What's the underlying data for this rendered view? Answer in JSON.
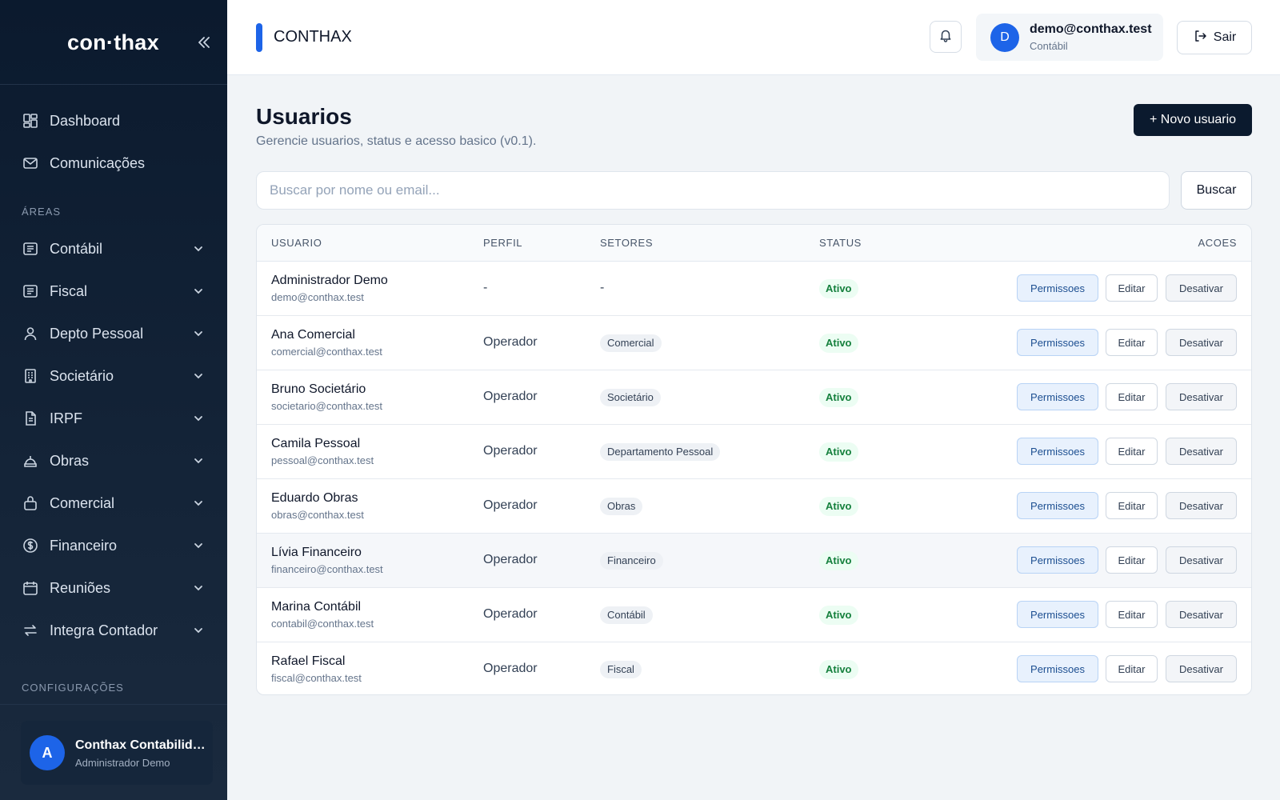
{
  "sidebar": {
    "logo": "con·thax",
    "items": [
      {
        "label": "Dashboard",
        "icon": "dashboard-icon"
      },
      {
        "label": "Comunicações",
        "icon": "mail-icon"
      }
    ],
    "areas_label": "ÁREAS",
    "areas": [
      {
        "label": "Contábil",
        "icon": "ledger-icon"
      },
      {
        "label": "Fiscal",
        "icon": "receipt-icon"
      },
      {
        "label": "Depto Pessoal",
        "icon": "user-icon"
      },
      {
        "label": "Societário",
        "icon": "building-icon"
      },
      {
        "label": "IRPF",
        "icon": "document-icon"
      },
      {
        "label": "Obras",
        "icon": "construction-icon"
      },
      {
        "label": "Comercial",
        "icon": "briefcase-icon"
      },
      {
        "label": "Financeiro",
        "icon": "dollar-icon"
      },
      {
        "label": "Reuniões",
        "icon": "calendar-icon"
      },
      {
        "label": "Integra Contador",
        "icon": "swap-icon"
      }
    ],
    "config_label": "CONFIGURAÇÕES",
    "org": {
      "avatar": "A",
      "name": "Conthax Contabilidade",
      "role": "Administrador Demo"
    }
  },
  "topbar": {
    "title": "CONTHAX",
    "user": {
      "avatar": "D",
      "email": "demo@conthax.test",
      "role": "Contábil"
    },
    "logout_label": "Sair"
  },
  "main": {
    "title": "Usuarios",
    "subtitle": "Gerencie usuarios, status e acesso basico (v0.1).",
    "new_button": "+ Novo usuario",
    "search": {
      "placeholder": "Buscar por nome ou email...",
      "value": "",
      "button": "Buscar"
    },
    "table": {
      "columns": [
        "USUARIO",
        "PERFIL",
        "SETORES",
        "STATUS",
        "ACOES"
      ],
      "actions": {
        "permissions": "Permissoes",
        "edit": "Editar",
        "deactivate": "Desativar"
      },
      "rows": [
        {
          "name": "Administrador Demo",
          "email": "demo@conthax.test",
          "perfil": "-",
          "setor": "-",
          "status": "Ativo"
        },
        {
          "name": "Ana Comercial",
          "email": "comercial@conthax.test",
          "perfil": "Operador",
          "setor": "Comercial",
          "status": "Ativo"
        },
        {
          "name": "Bruno Societário",
          "email": "societario@conthax.test",
          "perfil": "Operador",
          "setor": "Societário",
          "status": "Ativo"
        },
        {
          "name": "Camila Pessoal",
          "email": "pessoal@conthax.test",
          "perfil": "Operador",
          "setor": "Departamento Pessoal",
          "status": "Ativo"
        },
        {
          "name": "Eduardo Obras",
          "email": "obras@conthax.test",
          "perfil": "Operador",
          "setor": "Obras",
          "status": "Ativo"
        },
        {
          "name": "Lívia Financeiro",
          "email": "financeiro@conthax.test",
          "perfil": "Operador",
          "setor": "Financeiro",
          "status": "Ativo"
        },
        {
          "name": "Marina Contábil",
          "email": "contabil@conthax.test",
          "perfil": "Operador",
          "setor": "Contábil",
          "status": "Ativo"
        },
        {
          "name": "Rafael Fiscal",
          "email": "fiscal@conthax.test",
          "perfil": "Operador",
          "setor": "Fiscal",
          "status": "Ativo"
        }
      ]
    }
  },
  "colors": {
    "accent": "#1d64e8",
    "sidebar_bg": "#0b1a2e",
    "status_active": "#15803d"
  }
}
